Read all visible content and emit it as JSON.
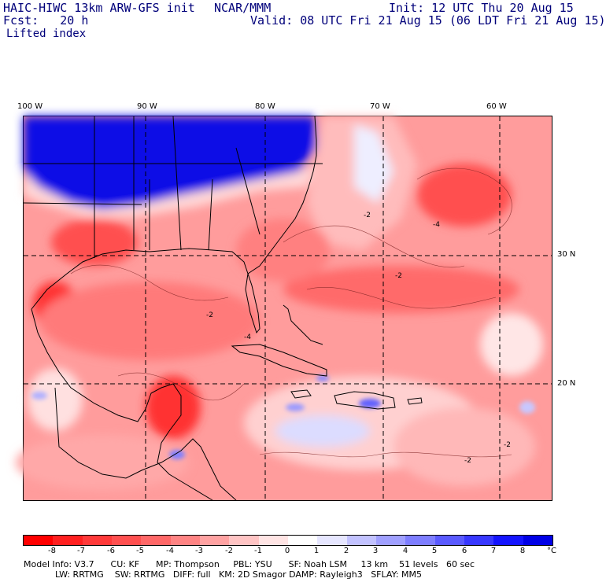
{
  "header": {
    "model": "HAIC-HIWC 13km ARW-GFS init",
    "org": "NCAR/MMM",
    "init": "Init: 12 UTC Thu 20 Aug 15",
    "fcst": "Fcst:   20 h",
    "valid": "Valid: 08 UTC Fri 21 Aug 15 (06 LDT Fri 21 Aug 15)",
    "field": "Lifted index"
  },
  "map": {
    "lon_labels": [
      "100 W",
      "90 W",
      "80 W",
      "70 W",
      "60 W"
    ],
    "lat_labels": [
      "30 N",
      "20 N"
    ],
    "contour_labels": [
      "-2",
      "-2",
      "-4",
      "-4",
      "-2",
      "-2",
      "-2"
    ]
  },
  "legend": {
    "ticks": [
      "-8",
      "-7",
      "-6",
      "-5",
      "-4",
      "-3",
      "-2",
      "-1",
      "0",
      "1",
      "2",
      "3",
      "4",
      "5",
      "6",
      "7",
      "8"
    ],
    "unit": "°C",
    "colors": [
      "#ff0000",
      "#ff2020",
      "#ff3a3a",
      "#ff5050",
      "#ff6868",
      "#ff8484",
      "#ffa2a2",
      "#ffc4c4",
      "#ffe4e4",
      "#ffffff",
      "#e6e6ff",
      "#c2c2ff",
      "#a0a0ff",
      "#7e7eff",
      "#5a5aff",
      "#3838ff",
      "#1414ff",
      "#0000e6"
    ]
  },
  "info": {
    "line1": "Model Info: V3.7      CU: KF      MP: Thompson     PBL: YSU      SF: Noah LSM     13 km    51 levels   60 sec",
    "line2": "LW: RRTMG    SW: RRTMG   DIFF: full   KM: 2D Smagor DAMP: Rayleigh3   SFLAY: MM5"
  }
}
